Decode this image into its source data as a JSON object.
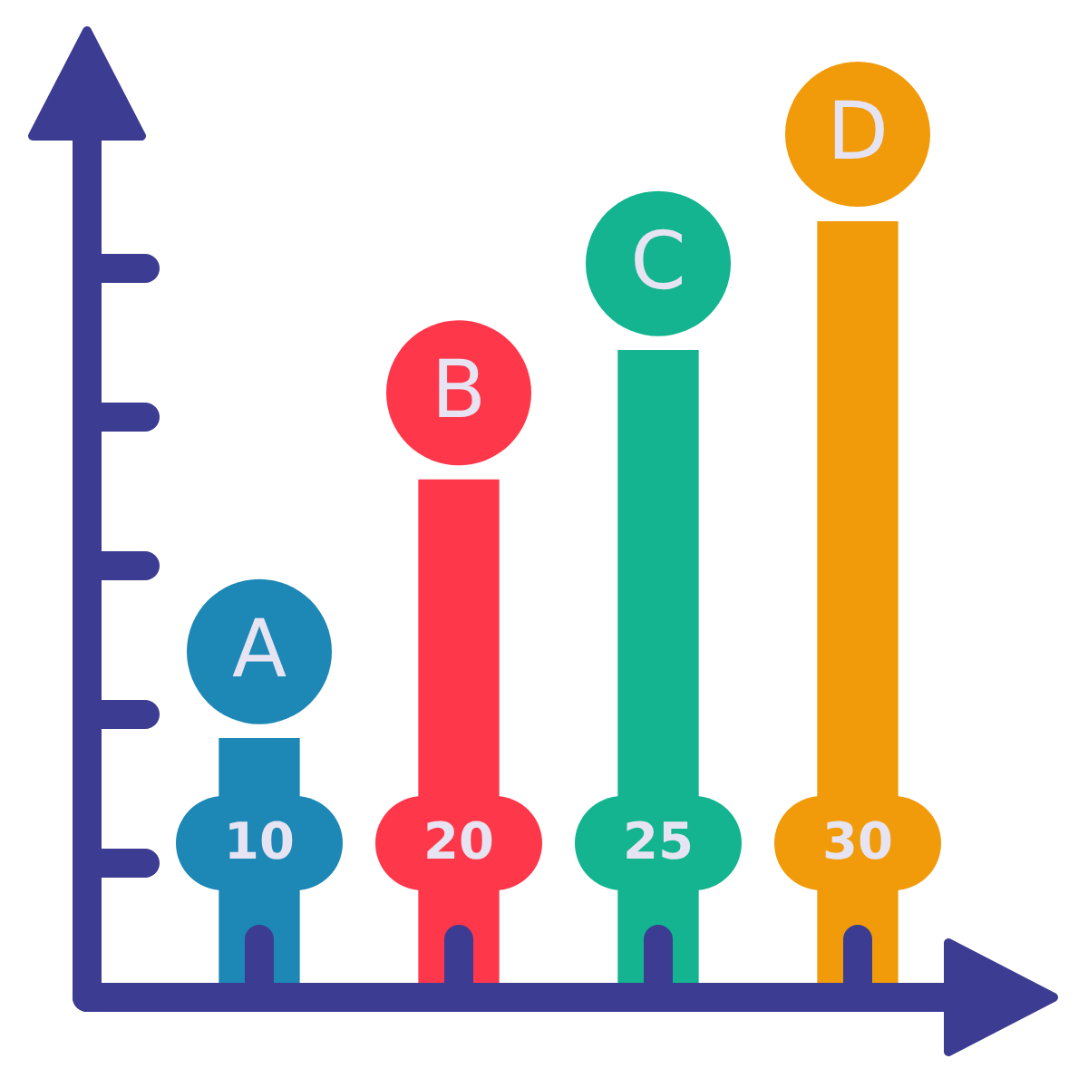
{
  "chart_data": {
    "type": "bar",
    "categories": [
      "A",
      "B",
      "C",
      "D"
    ],
    "values": [
      10,
      20,
      25,
      30
    ],
    "colors": [
      "#1d87b5",
      "#fe374b",
      "#13b48f",
      "#f19a0a"
    ],
    "data_labels": true
  }
}
